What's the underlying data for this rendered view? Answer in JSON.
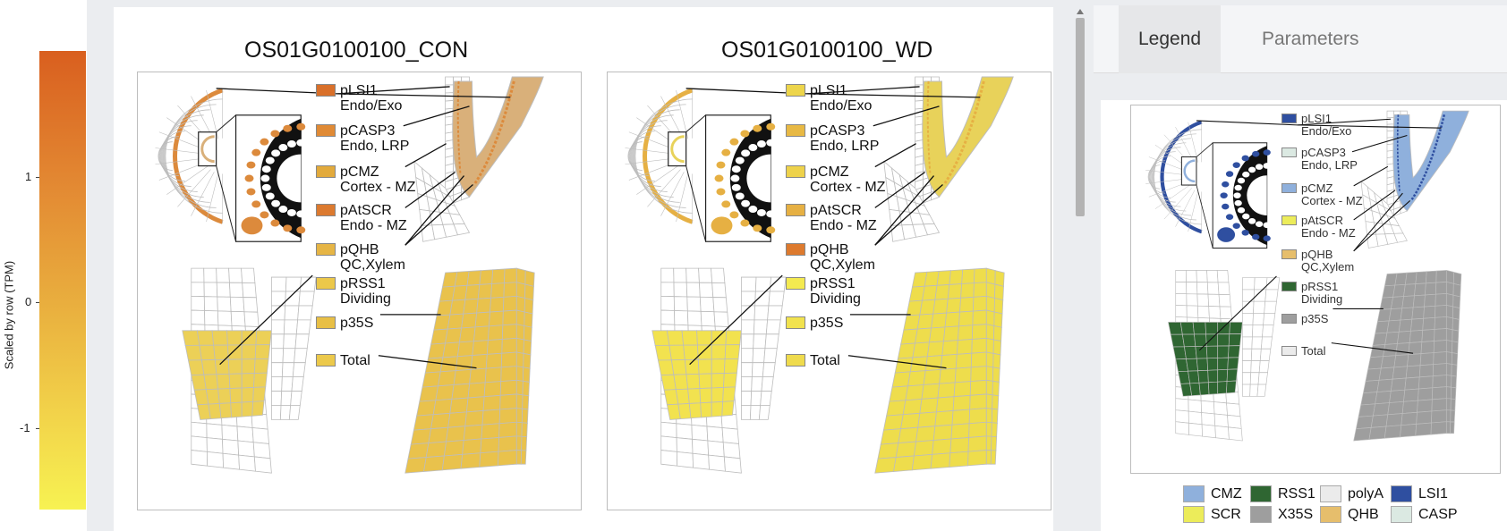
{
  "colorbar": {
    "title": "Scaled by row (TPM)",
    "ticks": [
      {
        "label": "1",
        "value": 1
      },
      {
        "label": "0",
        "value": 0
      },
      {
        "label": "-1",
        "value": -1
      }
    ],
    "range": [
      -1.65,
      2.0
    ],
    "colors": {
      "high": "#d95f1f",
      "mid": "#e9ae3e",
      "low": "#f7f252"
    }
  },
  "plots": [
    {
      "title": "OS01G0100100_CON",
      "labels": [
        {
          "line1": "pLSI1",
          "line2": "Endo/Exo",
          "color": "#d9702a"
        },
        {
          "line1": "pCASP3",
          "line2": "Endo, LRP",
          "color": "#e08a35"
        },
        {
          "line1": "pCMZ",
          "line2": "Cortex - MZ",
          "color": "#e2aa3c"
        },
        {
          "line1": "pAtSCR",
          "line2": "Endo - MZ",
          "color": "#dc7a2f"
        },
        {
          "line1": "pQHB",
          "line2": "QC,Xylem",
          "color": "#e6b545"
        },
        {
          "line1": "pRSS1",
          "line2": "Dividing",
          "color": "#ecc84a"
        },
        {
          "line1": "p35S",
          "line2": "",
          "color": "#e8bf45"
        },
        {
          "line1": "Total",
          "line2": "",
          "color": "#ecc94b"
        }
      ],
      "fills": {
        "meristem": "#ecd057",
        "whole_root": "#e9c24c",
        "tissue": "#d9b07a",
        "cortex": "#dc8a3c"
      }
    },
    {
      "title": "OS01G0100100_WD",
      "labels": [
        {
          "line1": "pLSI1",
          "line2": "Endo/Exo",
          "color": "#edd54b"
        },
        {
          "line1": "pCASP3",
          "line2": "Endo, LRP",
          "color": "#e8b944"
        },
        {
          "line1": "pCMZ",
          "line2": "Cortex - MZ",
          "color": "#eed24b"
        },
        {
          "line1": "pAtSCR",
          "line2": "Endo - MZ",
          "color": "#e6b043"
        },
        {
          "line1": "pQHB",
          "line2": "QC,Xylem",
          "color": "#dd7a2e"
        },
        {
          "line1": "pRSS1",
          "line2": "Dividing",
          "color": "#f4ea50"
        },
        {
          "line1": "p35S",
          "line2": "",
          "color": "#f1e24e"
        },
        {
          "line1": "Total",
          "line2": "",
          "color": "#efdb4d"
        }
      ],
      "fills": {
        "meristem": "#f2e24f",
        "whole_root": "#eedd4c",
        "tissue": "#e8d25a",
        "cortex": "#e6b043"
      }
    }
  ],
  "tabs": [
    {
      "label": "Legend",
      "active": true
    },
    {
      "label": "Parameters",
      "active": false
    }
  ],
  "legend_image": {
    "labels": [
      {
        "line1": "pLSI1",
        "line2": "Endo/Exo",
        "color": "#2f4fa0"
      },
      {
        "line1": "pCASP3",
        "line2": "Endo, LRP",
        "color": "#dbe9e2"
      },
      {
        "line1": "pCMZ",
        "line2": "Cortex - MZ",
        "color": "#8fb0dc"
      },
      {
        "line1": "pAtSCR",
        "line2": "Endo - MZ",
        "color": "#ecec5a"
      },
      {
        "line1": "pQHB",
        "line2": "QC,Xylem",
        "color": "#e6be6c"
      },
      {
        "line1": "pRSS1",
        "line2": "Dividing",
        "color": "#2f6632"
      },
      {
        "line1": "p35S",
        "line2": "",
        "color": "#9e9e9e"
      },
      {
        "line1": "Total",
        "line2": "",
        "color": "#ebebeb"
      }
    ]
  },
  "key": [
    {
      "label": "CMZ",
      "color": "#8fb0dc"
    },
    {
      "label": "RSS1",
      "color": "#2f6632"
    },
    {
      "label": "polyA",
      "color": "#ebebeb"
    },
    {
      "label": "LSI1",
      "color": "#2f4fa0"
    },
    {
      "label": "SCR",
      "color": "#ecec5a"
    },
    {
      "label": "X35S",
      "color": "#9e9e9e"
    },
    {
      "label": "QHB",
      "color": "#e6be6c"
    },
    {
      "label": "CASP",
      "color": "#dbe9e2"
    }
  ]
}
